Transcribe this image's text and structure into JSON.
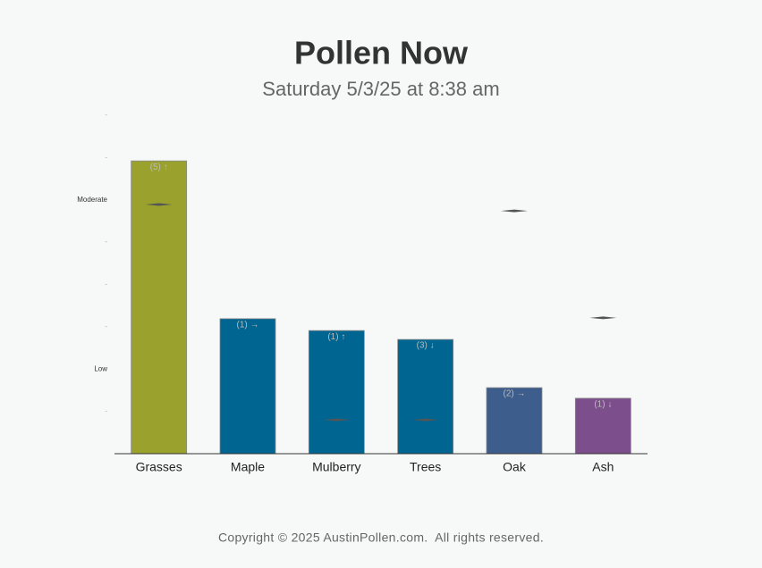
{
  "chart_data": {
    "type": "bar",
    "title": "Pollen Now",
    "subtitle": "Saturday 5/3/25 at 8:38 am",
    "categories": [
      "Grasses",
      "Maple",
      "Mulberry",
      "Trees",
      "Oak",
      "Ash"
    ],
    "values": [
      6.92,
      3.19,
      2.91,
      2.7,
      1.56,
      1.31
    ],
    "colors": [
      "#9aa22d",
      "#006591",
      "#006591",
      "#006591",
      "#3d5d8c",
      "#7c4f8c"
    ],
    "bar_annotations": [
      "(5) ↑",
      "(1) →",
      "(1) ↑",
      "(3) ↓",
      "(2) →",
      "(1) ↓"
    ],
    "marker_values": [
      5.89,
      null,
      0.8,
      0.8,
      5.74,
      3.21
    ],
    "marker_color": "#555555",
    "ylim": [
      0,
      8
    ],
    "yticks": [
      {
        "value": 1,
        "label": "-"
      },
      {
        "value": 2,
        "label": "Low"
      },
      {
        "value": 3,
        "label": "-"
      },
      {
        "value": 4,
        "label": "-"
      },
      {
        "value": 5,
        "label": "-"
      },
      {
        "value": 6,
        "label": "Moderate"
      },
      {
        "value": 7,
        "label": "-"
      },
      {
        "value": 8,
        "label": "-"
      }
    ],
    "footer": "Copyright © 2025 AustinPollen.com.  All rights reserved."
  }
}
